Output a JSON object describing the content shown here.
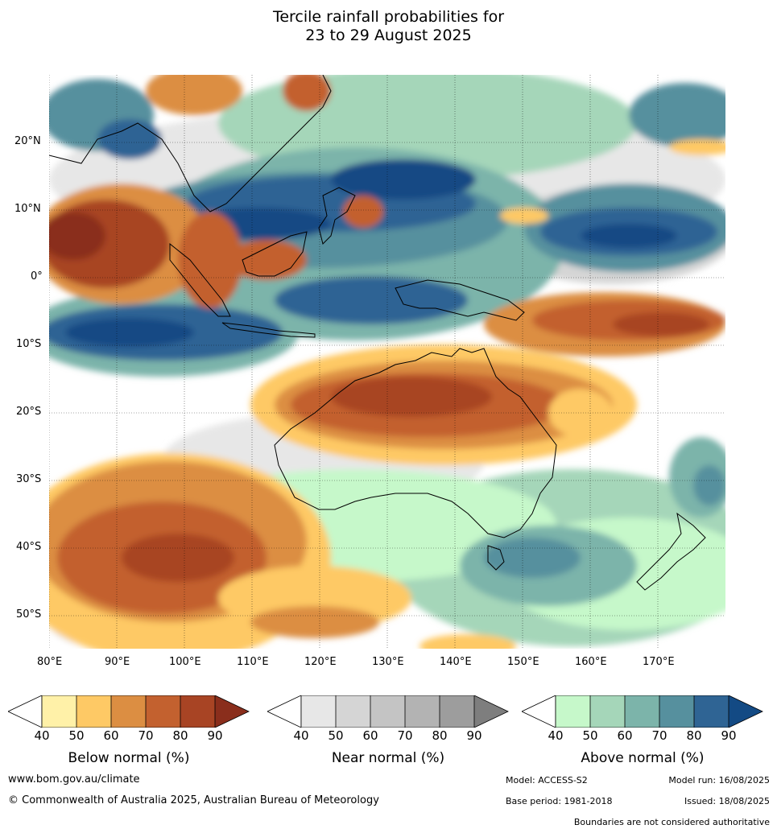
{
  "title": {
    "line1": "Tercile rainfall probabilities for",
    "line2": "23 to 29 August 2025"
  },
  "axes": {
    "lat_labels": [
      "20°N",
      "10°N",
      "0°",
      "10°S",
      "20°S",
      "30°S",
      "40°S",
      "50°S"
    ],
    "lon_labels": [
      "80°E",
      "90°E",
      "100°E",
      "110°E",
      "120°E",
      "130°E",
      "140°E",
      "150°E",
      "160°E",
      "170°E"
    ]
  },
  "colorbars": [
    {
      "label": "Below normal (%)",
      "ticks": [
        "40",
        "50",
        "60",
        "70",
        "80",
        "90"
      ],
      "colors": [
        "#fff1a8",
        "#fec965",
        "#dc8e42",
        "#c3612f",
        "#a84424",
        "#8a2e1c"
      ]
    },
    {
      "label": "Near normal (%)",
      "ticks": [
        "40",
        "50",
        "60",
        "70",
        "80",
        "90"
      ],
      "colors": [
        "#e7e7e7",
        "#d5d5d5",
        "#c4c4c4",
        "#b3b3b3",
        "#9d9d9d",
        "#7e7e7e"
      ]
    },
    {
      "label": "Above normal (%)",
      "ticks": [
        "40",
        "50",
        "60",
        "70",
        "80",
        "90"
      ],
      "colors": [
        "#c6f8ca",
        "#a5d6b9",
        "#7cb4aa",
        "#56909e",
        "#2f6494",
        "#134a84"
      ]
    }
  ],
  "footer": {
    "website": "www.bom.gov.au/climate",
    "copyright": "© Commonwealth of Australia 2025, Australian Bureau of Meteorology",
    "model": "Model: ACCESS-S2",
    "model_run": "Model run: 16/08/2025",
    "base_period": "Base period: 1981-2018",
    "issued": "Issued: 18/08/2025",
    "disclaimer": "Boundaries are not considered authoritative"
  }
}
